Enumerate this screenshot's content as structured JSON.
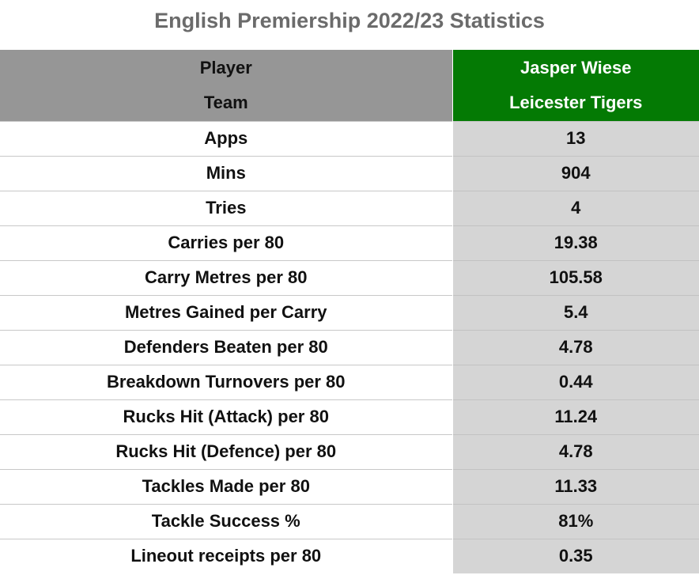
{
  "title": "English Premiership 2022/23 Statistics",
  "colors": {
    "header_label_bg": "#969696",
    "header_value_bg": "#047a04",
    "value_column_bg": "#d5d5d5",
    "title_text": "#6b6b6b"
  },
  "chart_data": {
    "type": "table",
    "title": "English Premiership 2022/23 Statistics",
    "header_rows": [
      {
        "label": "Player",
        "value": "Jasper Wiese"
      },
      {
        "label": "Team",
        "value": "Leicester Tigers"
      }
    ],
    "rows": [
      {
        "label": "Apps",
        "value": "13"
      },
      {
        "label": "Mins",
        "value": "904"
      },
      {
        "label": "Tries",
        "value": "4"
      },
      {
        "label": "Carries per 80",
        "value": "19.38"
      },
      {
        "label": "Carry Metres per 80",
        "value": "105.58"
      },
      {
        "label": "Metres Gained per Carry",
        "value": "5.4"
      },
      {
        "label": "Defenders Beaten per 80",
        "value": "4.78"
      },
      {
        "label": "Breakdown Turnovers per 80",
        "value": "0.44"
      },
      {
        "label": "Rucks Hit (Attack) per 80",
        "value": "11.24"
      },
      {
        "label": "Rucks Hit (Defence) per 80",
        "value": "4.78"
      },
      {
        "label": "Tackles Made per 80",
        "value": "11.33"
      },
      {
        "label": "Tackle Success %",
        "value": "81%"
      },
      {
        "label": "Lineout receipts per 80",
        "value": "0.35"
      }
    ]
  }
}
